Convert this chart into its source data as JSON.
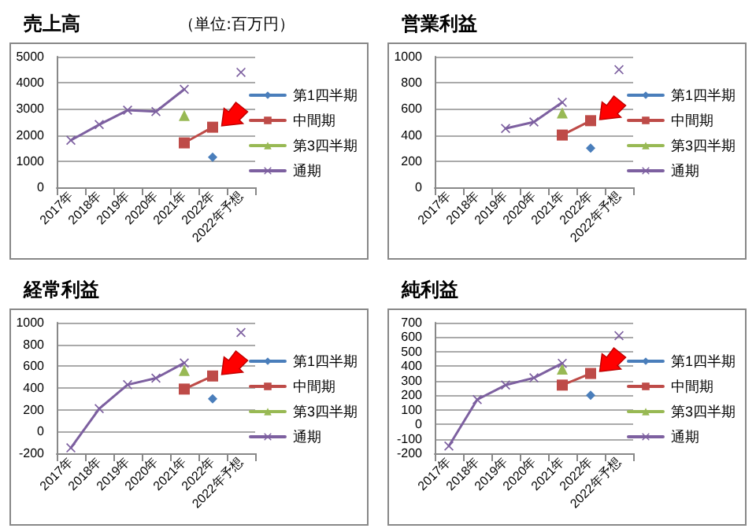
{
  "chart_data": [
    {
      "type": "line",
      "title": "売上高",
      "annotations": [
        "（単位:百万円）"
      ],
      "categories": [
        "2017年",
        "2018年",
        "2019年",
        "2020年",
        "2021年",
        "2022年",
        "2022年予想"
      ],
      "ylim": [
        0,
        5000
      ],
      "yticks": [
        0,
        1000,
        2000,
        3000,
        4000,
        5000
      ],
      "grid": "y",
      "legend": "right",
      "series": [
        {
          "name": "第1四半期",
          "color": "#4a7ebb",
          "marker": "diamond",
          "values": [
            null,
            null,
            null,
            null,
            null,
            1150,
            null
          ]
        },
        {
          "name": "中間期",
          "color": "#be4b48",
          "marker": "square",
          "values": [
            null,
            null,
            null,
            null,
            1700,
            2300,
            null
          ]
        },
        {
          "name": "第3四半期",
          "color": "#98b954",
          "marker": "triangle",
          "values": [
            null,
            null,
            null,
            null,
            2750,
            null,
            null
          ]
        },
        {
          "name": "通期",
          "color": "#7d60a0",
          "marker": "cross",
          "values": [
            1800,
            2400,
            2950,
            2900,
            3750,
            null,
            4400
          ]
        }
      ]
    },
    {
      "type": "line",
      "title": "営業利益",
      "categories": [
        "2017年",
        "2018年",
        "2019年",
        "2020年",
        "2021年",
        "2022年",
        "2022年予想"
      ],
      "ylim": [
        0,
        1000
      ],
      "yticks": [
        0,
        200,
        400,
        600,
        800,
        1000
      ],
      "grid": "y",
      "legend": "right",
      "series": [
        {
          "name": "第1四半期",
          "color": "#4a7ebb",
          "marker": "diamond",
          "values": [
            null,
            null,
            null,
            null,
            null,
            300,
            null
          ]
        },
        {
          "name": "中間期",
          "color": "#be4b48",
          "marker": "square",
          "values": [
            null,
            null,
            null,
            null,
            400,
            510,
            null
          ]
        },
        {
          "name": "第3四半期",
          "color": "#98b954",
          "marker": "triangle",
          "values": [
            null,
            null,
            null,
            null,
            570,
            null,
            null
          ]
        },
        {
          "name": "通期",
          "color": "#7d60a0",
          "marker": "cross",
          "values": [
            null,
            null,
            450,
            500,
            650,
            null,
            900
          ]
        }
      ]
    },
    {
      "type": "line",
      "title": "経常利益",
      "categories": [
        "2017年",
        "2018年",
        "2019年",
        "2020年",
        "2021年",
        "2022年",
        "2022年予想"
      ],
      "ylim": [
        -200,
        1000
      ],
      "yticks": [
        -200,
        0,
        200,
        400,
        600,
        800,
        1000
      ],
      "grid": "y",
      "legend": "right",
      "series": [
        {
          "name": "第1四半期",
          "color": "#4a7ebb",
          "marker": "diamond",
          "values": [
            null,
            null,
            null,
            null,
            null,
            300,
            null
          ]
        },
        {
          "name": "中間期",
          "color": "#be4b48",
          "marker": "square",
          "values": [
            null,
            null,
            null,
            null,
            390,
            510,
            null
          ]
        },
        {
          "name": "第3四半期",
          "color": "#98b954",
          "marker": "triangle",
          "values": [
            null,
            null,
            null,
            null,
            560,
            null,
            null
          ]
        },
        {
          "name": "通期",
          "color": "#7d60a0",
          "marker": "cross",
          "values": [
            -150,
            210,
            430,
            490,
            630,
            null,
            910
          ]
        }
      ]
    },
    {
      "type": "line",
      "title": "純利益",
      "categories": [
        "2017年",
        "2018年",
        "2019年",
        "2020年",
        "2021年",
        "2022年",
        "2022年予想"
      ],
      "ylim": [
        -200,
        700
      ],
      "yticks": [
        -200,
        -100,
        0,
        100,
        200,
        300,
        400,
        500,
        600,
        700
      ],
      "grid": "y",
      "legend": "right",
      "series": [
        {
          "name": "第1四半期",
          "color": "#4a7ebb",
          "marker": "diamond",
          "values": [
            null,
            null,
            null,
            null,
            null,
            200,
            null
          ]
        },
        {
          "name": "中間期",
          "color": "#be4b48",
          "marker": "square",
          "values": [
            null,
            null,
            null,
            null,
            270,
            350,
            null
          ]
        },
        {
          "name": "第3四半期",
          "color": "#98b954",
          "marker": "triangle",
          "values": [
            null,
            null,
            null,
            null,
            380,
            null,
            null
          ]
        },
        {
          "name": "通期",
          "color": "#7d60a0",
          "marker": "cross",
          "values": [
            -150,
            170,
            270,
            320,
            420,
            null,
            610
          ]
        }
      ]
    }
  ]
}
